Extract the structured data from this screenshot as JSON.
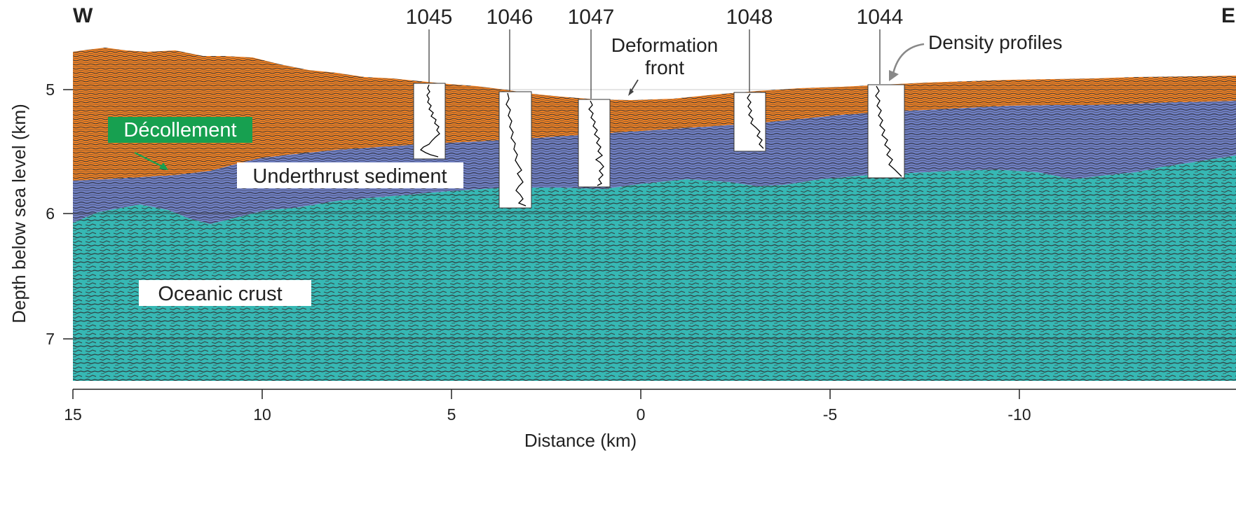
{
  "directions": {
    "west": "W",
    "east": "E"
  },
  "sites": [
    {
      "label": "1045",
      "depth_top_km": 4.95,
      "depth_bottom_km": 5.55
    },
    {
      "label": "1046",
      "depth_top_km": 5.0,
      "depth_bottom_km": 5.95
    },
    {
      "label": "1047",
      "depth_top_km": 5.08,
      "depth_bottom_km": 5.78
    },
    {
      "label": "1048",
      "depth_top_km": 5.02,
      "depth_bottom_km": 5.5
    },
    {
      "label": "1044",
      "depth_top_km": 4.95,
      "depth_bottom_km": 5.7
    }
  ],
  "annotations": {
    "deformation_front_line1": "Deformation",
    "deformation_front_line2": "front",
    "density_profiles": "Density profiles"
  },
  "units": {
    "decollement": "Décollement",
    "underthrust": "Underthrust sediment",
    "oceanic_crust": "Oceanic crust"
  },
  "colors": {
    "wedge": "#ee7f22",
    "underthrust": "#6f7fc2",
    "crust": "#36b8b4",
    "decollement_label_bg": "#17a050",
    "seismic_reflector": "#3d3d3d"
  },
  "axes": {
    "x_title": "Distance (km)",
    "y_title": "Depth below sea level (km)",
    "x_ticks": [
      "15",
      "10",
      "5",
      "0",
      "-5",
      "-10"
    ],
    "y_ticks": [
      "5",
      "6",
      "7"
    ]
  }
}
